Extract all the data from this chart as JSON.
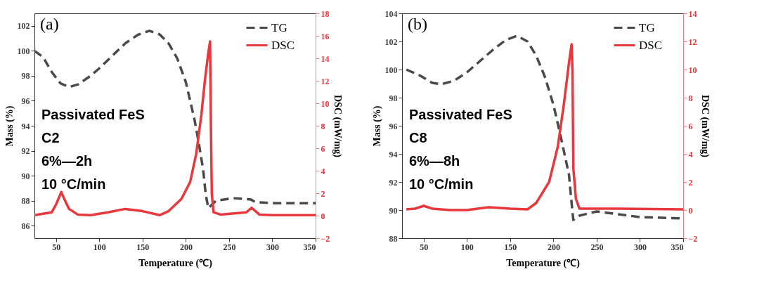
{
  "chart_data": [
    {
      "type": "line",
      "xlabel": "Temperature (℃)",
      "ylabel": "Mass (%)",
      "y2label": "DSC (mW/mg)",
      "xlim": [
        25,
        350
      ],
      "xticks": [
        50,
        100,
        150,
        200,
        250,
        300,
        350
      ],
      "ylim": [
        85,
        103
      ],
      "yticks": [
        86,
        88,
        90,
        92,
        94,
        96,
        98,
        100,
        102
      ],
      "y2lim": [
        -2,
        18
      ],
      "y2ticks": [
        -2,
        0,
        2,
        4,
        6,
        8,
        10,
        12,
        14,
        16,
        18
      ],
      "grid": false,
      "legend": "top right",
      "annotations": [
        "(a)",
        "Passivated FeS",
        "C2",
        "6%—2h",
        "10 °C/min"
      ],
      "series": [
        {
          "name": "TG",
          "color": "#4a4a4a",
          "line_style": "dashed",
          "x": [
            25,
            35,
            45,
            55,
            65,
            75,
            90,
            100,
            115,
            130,
            145,
            158,
            170,
            180,
            190,
            200,
            210,
            215,
            220,
            223,
            226,
            235,
            255,
            275,
            280,
            300,
            350
          ],
          "values": [
            100,
            99.5,
            98.3,
            97.4,
            97.1,
            97.3,
            98,
            98.6,
            99.6,
            100.6,
            101.3,
            101.6,
            101.3,
            100.6,
            99.4,
            97.5,
            94.5,
            92.6,
            90.5,
            88.5,
            87.4,
            88,
            88.2,
            88.1,
            87.9,
            87.8,
            87.8
          ]
        },
        {
          "name": "DSC",
          "color": "#e8383d",
          "axis": "y2",
          "line_style": "solid",
          "x": [
            25,
            45,
            50,
            56,
            60,
            65,
            75,
            90,
            110,
            130,
            150,
            170,
            180,
            195,
            205,
            212,
            218,
            222,
            226,
            228,
            229,
            230,
            232,
            240,
            270,
            276,
            285,
            300,
            350
          ],
          "values": [
            0.05,
            0.3,
            1.0,
            2.1,
            1.4,
            0.6,
            0.1,
            0.05,
            0.3,
            0.6,
            0.4,
            0.05,
            0.4,
            1.5,
            3,
            5.5,
            9,
            12,
            14.5,
            15.5,
            8,
            2,
            0.3,
            0.1,
            0.3,
            0.7,
            0.1,
            0.05,
            0.05
          ]
        }
      ]
    },
    {
      "type": "line",
      "xlabel": "Temperature (℃)",
      "ylabel": "Mass (%)",
      "y2label": "DSC (mW/mg)",
      "xlim": [
        25,
        350
      ],
      "xticks": [
        50,
        100,
        150,
        200,
        250,
        300,
        350
      ],
      "ylim": [
        88,
        104
      ],
      "yticks": [
        88,
        90,
        92,
        94,
        96,
        98,
        100,
        102,
        104
      ],
      "y2lim": [
        -2,
        14
      ],
      "y2ticks": [
        -2,
        0,
        2,
        4,
        6,
        8,
        10,
        12,
        14
      ],
      "grid": false,
      "legend": "top right",
      "annotations": [
        "(b)",
        "Passivated FeS",
        "C8",
        "6%—8h",
        "10 °C/min"
      ],
      "series": [
        {
          "name": "TG",
          "color": "#4a4a4a",
          "line_style": "dashed",
          "x": [
            30,
            45,
            60,
            70,
            85,
            100,
            115,
            130,
            145,
            158,
            170,
            180,
            190,
            200,
            210,
            218,
            221,
            223,
            230,
            250,
            275,
            300,
            350
          ],
          "values": [
            100,
            99.6,
            99.05,
            98.95,
            99.2,
            99.8,
            100.6,
            101.4,
            102.1,
            102.4,
            102,
            101,
            99.5,
            97.5,
            94.8,
            92.5,
            90.5,
            89.3,
            89.6,
            89.9,
            89.7,
            89.5,
            89.4
          ]
        },
        {
          "name": "DSC",
          "color": "#e8383d",
          "axis": "y2",
          "line_style": "solid",
          "x": [
            30,
            40,
            50,
            60,
            80,
            100,
            125,
            150,
            170,
            180,
            195,
            205,
            212,
            218,
            221,
            222,
            223,
            226,
            230,
            275,
            350
          ],
          "values": [
            0.05,
            0.1,
            0.3,
            0.1,
            0,
            0,
            0.2,
            0.1,
            0.05,
            0.5,
            2,
            4.5,
            7.5,
            10.5,
            11.8,
            10,
            3,
            0.8,
            0.1,
            0.1,
            0.05
          ]
        }
      ]
    }
  ]
}
